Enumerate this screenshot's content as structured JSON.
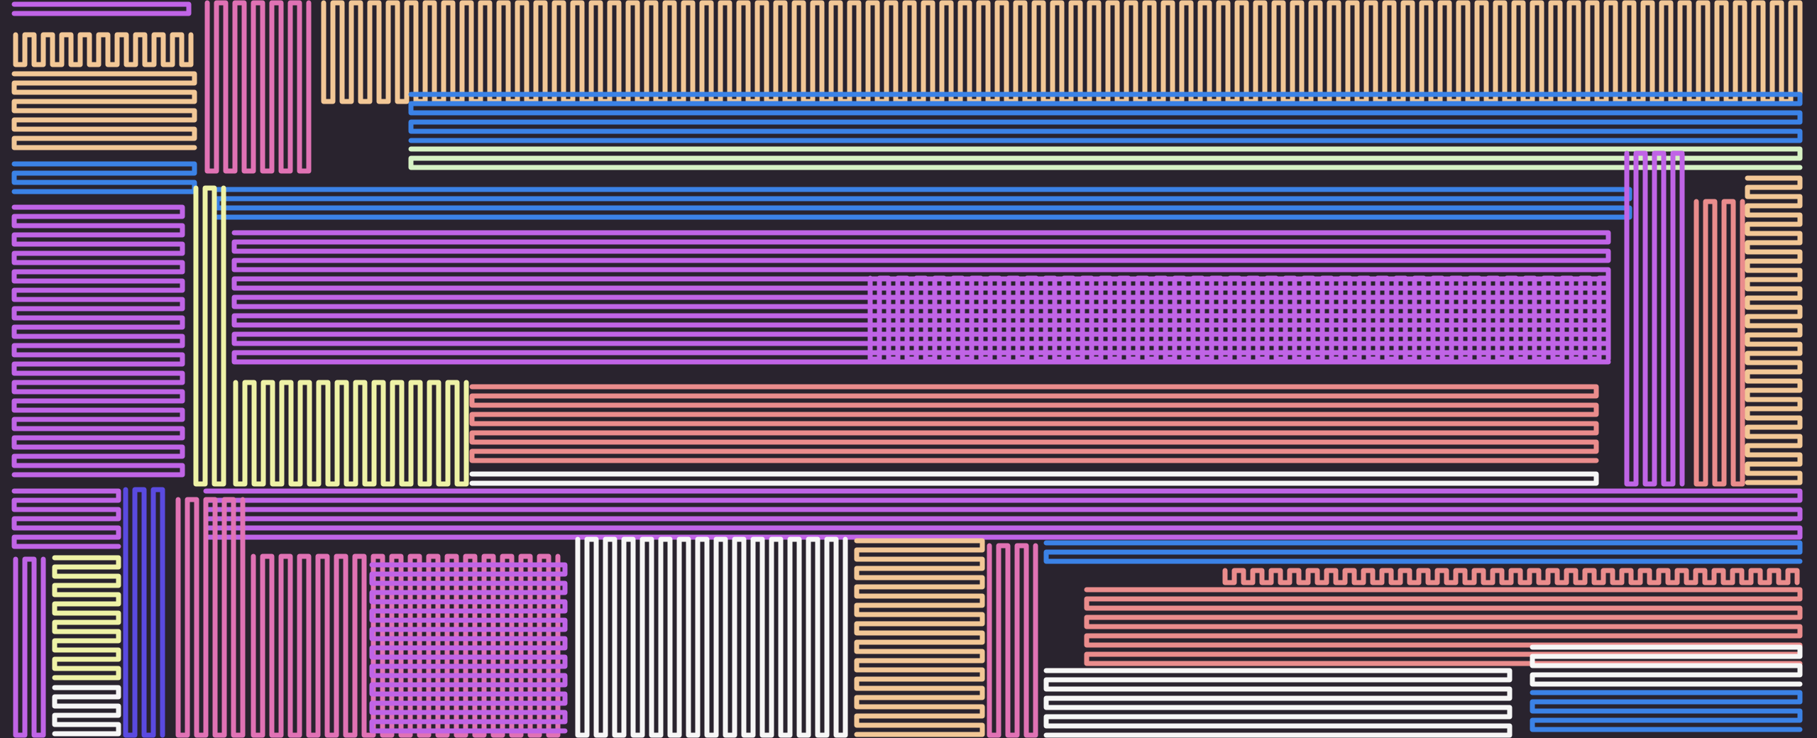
{
  "artwork": {
    "background": "#29232e",
    "palette": {
      "peach": "#f2c796",
      "violet": "#c064e6",
      "blue": "#3b82e6",
      "indigo": "#5a4ae0",
      "pink": "#e072b4",
      "salmon": "#ea8c8c",
      "yellow": "#eef2a6",
      "mint": "#d6f2c4",
      "white": "#f6f6f6"
    }
  }
}
